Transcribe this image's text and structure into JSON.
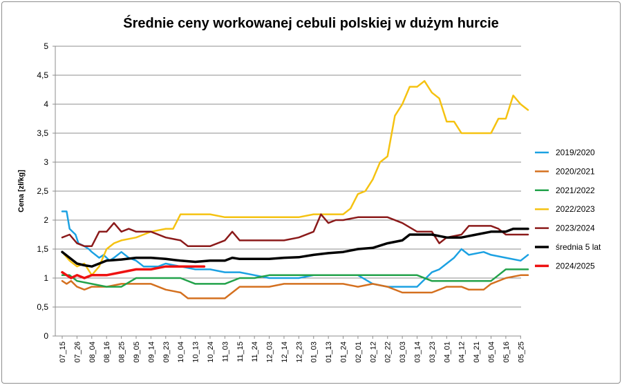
{
  "chart_data": {
    "type": "line",
    "title": "Średnie ceny workowanej cebuli polskiej w dużym hurcie",
    "xlabel": "",
    "ylabel": "Cena [zł/kg]",
    "ylim": [
      0,
      5
    ],
    "yticks": [
      "0",
      "0,5",
      "1",
      "1,5",
      "2",
      "2,5",
      "3",
      "3,5",
      "4",
      "4,5",
      "5"
    ],
    "grid": true,
    "legend_position": "right",
    "categories": [
      "07_15",
      "07_26",
      "08_04",
      "08_16",
      "08_25",
      "09_05",
      "09_14",
      "09_23",
      "10_04",
      "10_13",
      "10_24",
      "11_03",
      "11_15",
      "11_24",
      "12_03",
      "12_14",
      "12_23",
      "01_03",
      "01_13",
      "01_24",
      "02_01",
      "02_12",
      "02_22",
      "03_03",
      "03_14",
      "03_23",
      "04_01",
      "04_12",
      "04_21",
      "05_04",
      "05_16",
      "05_25"
    ],
    "series": [
      {
        "name": "2019/2020",
        "color": "#1ba1e2",
        "width": 2.5,
        "values": [
          [
            0,
            2.15
          ],
          [
            0.3,
            2.15
          ],
          [
            0.5,
            1.85
          ],
          [
            0.9,
            1.75
          ],
          [
            1.1,
            1.6
          ],
          [
            1.5,
            1.55
          ],
          [
            1.8,
            1.5
          ],
          [
            2.0,
            1.45
          ],
          [
            2.5,
            1.35
          ],
          [
            2.8,
            1.4
          ],
          [
            3.2,
            1.3
          ],
          [
            3.5,
            1.35
          ],
          [
            4.0,
            1.45
          ],
          [
            4.5,
            1.35
          ],
          [
            5.0,
            1.3
          ],
          [
            5.5,
            1.2
          ],
          [
            6.5,
            1.2
          ],
          [
            7.0,
            1.25
          ],
          [
            8.0,
            1.2
          ],
          [
            9.0,
            1.15
          ],
          [
            10.0,
            1.15
          ],
          [
            11.0,
            1.1
          ],
          [
            12.0,
            1.1
          ],
          [
            13.0,
            1.05
          ],
          [
            14.0,
            1.0
          ],
          [
            16.0,
            1.0
          ],
          [
            17.0,
            1.05
          ],
          [
            18.0,
            1.05
          ],
          [
            20.0,
            1.05
          ],
          [
            21.0,
            0.9
          ],
          [
            22.0,
            0.85
          ],
          [
            24.0,
            0.85
          ],
          [
            25.0,
            1.1
          ],
          [
            25.5,
            1.15
          ],
          [
            26.0,
            1.25
          ],
          [
            26.5,
            1.35
          ],
          [
            27.0,
            1.5
          ],
          [
            27.5,
            1.4
          ],
          [
            28.5,
            1.45
          ],
          [
            29.0,
            1.4
          ],
          [
            30.0,
            1.35
          ],
          [
            31.0,
            1.3
          ],
          [
            31.5,
            1.4
          ]
        ]
      },
      {
        "name": "2020/2021",
        "color": "#d4701f",
        "width": 2.5,
        "values": [
          [
            0,
            0.95
          ],
          [
            0.3,
            0.9
          ],
          [
            0.6,
            0.95
          ],
          [
            1.0,
            0.85
          ],
          [
            1.5,
            0.8
          ],
          [
            2.0,
            0.85
          ],
          [
            3.0,
            0.85
          ],
          [
            4.0,
            0.9
          ],
          [
            5.0,
            0.9
          ],
          [
            6.0,
            0.9
          ],
          [
            7.0,
            0.8
          ],
          [
            8.0,
            0.75
          ],
          [
            8.5,
            0.65
          ],
          [
            10.0,
            0.65
          ],
          [
            11.0,
            0.65
          ],
          [
            11.5,
            0.75
          ],
          [
            12.0,
            0.85
          ],
          [
            13.0,
            0.85
          ],
          [
            14.0,
            0.85
          ],
          [
            15.0,
            0.9
          ],
          [
            17.0,
            0.9
          ],
          [
            19.0,
            0.9
          ],
          [
            20.0,
            0.85
          ],
          [
            21.0,
            0.9
          ],
          [
            22.0,
            0.85
          ],
          [
            23.0,
            0.75
          ],
          [
            25.0,
            0.75
          ],
          [
            26.0,
            0.85
          ],
          [
            27.0,
            0.85
          ],
          [
            27.5,
            0.8
          ],
          [
            28.5,
            0.8
          ],
          [
            29.0,
            0.9
          ],
          [
            30.0,
            1.0
          ],
          [
            31.0,
            1.05
          ],
          [
            31.5,
            1.05
          ]
        ]
      },
      {
        "name": "2021/2022",
        "color": "#22a24a",
        "width": 2.5,
        "values": [
          [
            0,
            1.05
          ],
          [
            0.5,
            1.05
          ],
          [
            1.0,
            0.95
          ],
          [
            2.0,
            0.9
          ],
          [
            3.0,
            0.85
          ],
          [
            4.0,
            0.85
          ],
          [
            5.0,
            1.0
          ],
          [
            6.0,
            1.0
          ],
          [
            7.0,
            1.0
          ],
          [
            8.0,
            1.0
          ],
          [
            9.0,
            0.9
          ],
          [
            10.0,
            0.9
          ],
          [
            11.0,
            0.9
          ],
          [
            12.0,
            1.0
          ],
          [
            13.0,
            1.0
          ],
          [
            14.0,
            1.05
          ],
          [
            16.0,
            1.05
          ],
          [
            18.0,
            1.05
          ],
          [
            20.0,
            1.05
          ],
          [
            22.0,
            1.05
          ],
          [
            24.0,
            1.05
          ],
          [
            25.0,
            0.95
          ],
          [
            27.0,
            0.95
          ],
          [
            29.0,
            0.95
          ],
          [
            29.5,
            1.05
          ],
          [
            30.0,
            1.15
          ],
          [
            31.0,
            1.15
          ],
          [
            31.5,
            1.15
          ]
        ]
      },
      {
        "name": "2022/2023",
        "color": "#f5c211",
        "width": 2.5,
        "values": [
          [
            0,
            1.45
          ],
          [
            0.5,
            1.3
          ],
          [
            1.0,
            1.2
          ],
          [
            1.5,
            1.25
          ],
          [
            2.0,
            1.05
          ],
          [
            2.5,
            1.2
          ],
          [
            3.0,
            1.5
          ],
          [
            3.5,
            1.6
          ],
          [
            4.0,
            1.65
          ],
          [
            5.0,
            1.7
          ],
          [
            5.5,
            1.75
          ],
          [
            6.0,
            1.8
          ],
          [
            7.0,
            1.85
          ],
          [
            7.5,
            1.85
          ],
          [
            8.0,
            2.1
          ],
          [
            9.0,
            2.1
          ],
          [
            10.0,
            2.1
          ],
          [
            11.0,
            2.05
          ],
          [
            12.0,
            2.05
          ],
          [
            13.0,
            2.05
          ],
          [
            14.0,
            2.05
          ],
          [
            16.0,
            2.05
          ],
          [
            17.0,
            2.1
          ],
          [
            19.0,
            2.1
          ],
          [
            19.5,
            2.2
          ],
          [
            20.0,
            2.45
          ],
          [
            20.5,
            2.5
          ],
          [
            21.0,
            2.7
          ],
          [
            21.5,
            3.0
          ],
          [
            22.0,
            3.1
          ],
          [
            22.5,
            3.8
          ],
          [
            23.0,
            4.0
          ],
          [
            23.5,
            4.3
          ],
          [
            24.0,
            4.3
          ],
          [
            24.5,
            4.4
          ],
          [
            25.0,
            4.2
          ],
          [
            25.5,
            4.1
          ],
          [
            26.0,
            3.7
          ],
          [
            26.5,
            3.7
          ],
          [
            27.0,
            3.5
          ],
          [
            28.0,
            3.5
          ],
          [
            29.0,
            3.5
          ],
          [
            29.5,
            3.75
          ],
          [
            30.0,
            3.75
          ],
          [
            30.5,
            4.15
          ],
          [
            31.0,
            4.0
          ],
          [
            31.5,
            3.9
          ]
        ]
      },
      {
        "name": "2023/2024",
        "color": "#8b1a1a",
        "width": 2.5,
        "values": [
          [
            0,
            1.7
          ],
          [
            0.5,
            1.75
          ],
          [
            1.0,
            1.6
          ],
          [
            1.5,
            1.55
          ],
          [
            2.0,
            1.55
          ],
          [
            2.5,
            1.8
          ],
          [
            3.0,
            1.8
          ],
          [
            3.5,
            1.95
          ],
          [
            4.0,
            1.8
          ],
          [
            4.5,
            1.85
          ],
          [
            5.0,
            1.8
          ],
          [
            6.0,
            1.8
          ],
          [
            7.0,
            1.7
          ],
          [
            8.0,
            1.65
          ],
          [
            8.5,
            1.55
          ],
          [
            10.0,
            1.55
          ],
          [
            11.0,
            1.65
          ],
          [
            11.5,
            1.8
          ],
          [
            12.0,
            1.65
          ],
          [
            13.0,
            1.65
          ],
          [
            14.0,
            1.65
          ],
          [
            15.0,
            1.65
          ],
          [
            16.0,
            1.7
          ],
          [
            17.0,
            1.8
          ],
          [
            17.5,
            2.1
          ],
          [
            18.0,
            1.95
          ],
          [
            18.5,
            2.0
          ],
          [
            19.0,
            2.0
          ],
          [
            20.0,
            2.05
          ],
          [
            22.0,
            2.05
          ],
          [
            23.0,
            1.95
          ],
          [
            24.0,
            1.8
          ],
          [
            25.0,
            1.8
          ],
          [
            25.5,
            1.6
          ],
          [
            26.0,
            1.7
          ],
          [
            27.0,
            1.75
          ],
          [
            27.5,
            1.9
          ],
          [
            29.0,
            1.9
          ],
          [
            29.5,
            1.85
          ],
          [
            30.0,
            1.75
          ],
          [
            31.0,
            1.75
          ],
          [
            31.5,
            1.75
          ]
        ]
      },
      {
        "name": "średnia 5 lat",
        "color": "#000000",
        "width": 3.5,
        "values": [
          [
            0,
            1.45
          ],
          [
            0.5,
            1.35
          ],
          [
            1.0,
            1.25
          ],
          [
            1.5,
            1.22
          ],
          [
            2.0,
            1.2
          ],
          [
            2.5,
            1.25
          ],
          [
            3.0,
            1.3
          ],
          [
            4.0,
            1.32
          ],
          [
            5.0,
            1.35
          ],
          [
            6.0,
            1.35
          ],
          [
            7.0,
            1.33
          ],
          [
            8.0,
            1.3
          ],
          [
            9.0,
            1.28
          ],
          [
            10.0,
            1.3
          ],
          [
            11.0,
            1.3
          ],
          [
            11.5,
            1.35
          ],
          [
            12.0,
            1.33
          ],
          [
            13.0,
            1.33
          ],
          [
            14.0,
            1.33
          ],
          [
            15.0,
            1.35
          ],
          [
            16.0,
            1.36
          ],
          [
            17.0,
            1.4
          ],
          [
            18.0,
            1.43
          ],
          [
            19.0,
            1.45
          ],
          [
            20.0,
            1.5
          ],
          [
            21.0,
            1.52
          ],
          [
            22.0,
            1.6
          ],
          [
            23.0,
            1.65
          ],
          [
            23.5,
            1.75
          ],
          [
            24.0,
            1.75
          ],
          [
            25.0,
            1.75
          ],
          [
            26.0,
            1.7
          ],
          [
            27.0,
            1.7
          ],
          [
            28.0,
            1.75
          ],
          [
            29.0,
            1.8
          ],
          [
            30.0,
            1.8
          ],
          [
            30.5,
            1.85
          ],
          [
            31.0,
            1.85
          ],
          [
            31.5,
            1.85
          ]
        ]
      },
      {
        "name": "2024/2025",
        "color": "#ee1111",
        "width": 3.5,
        "values": [
          [
            0,
            1.1
          ],
          [
            0.3,
            1.05
          ],
          [
            0.6,
            1.0
          ],
          [
            1.0,
            1.05
          ],
          [
            1.5,
            1.0
          ],
          [
            2.0,
            1.05
          ],
          [
            3.0,
            1.05
          ],
          [
            4.0,
            1.1
          ],
          [
            5.0,
            1.15
          ],
          [
            6.0,
            1.15
          ],
          [
            7.0,
            1.2
          ],
          [
            8.0,
            1.2
          ],
          [
            9.0,
            1.2
          ],
          [
            9.6,
            1.2
          ]
        ]
      }
    ]
  }
}
